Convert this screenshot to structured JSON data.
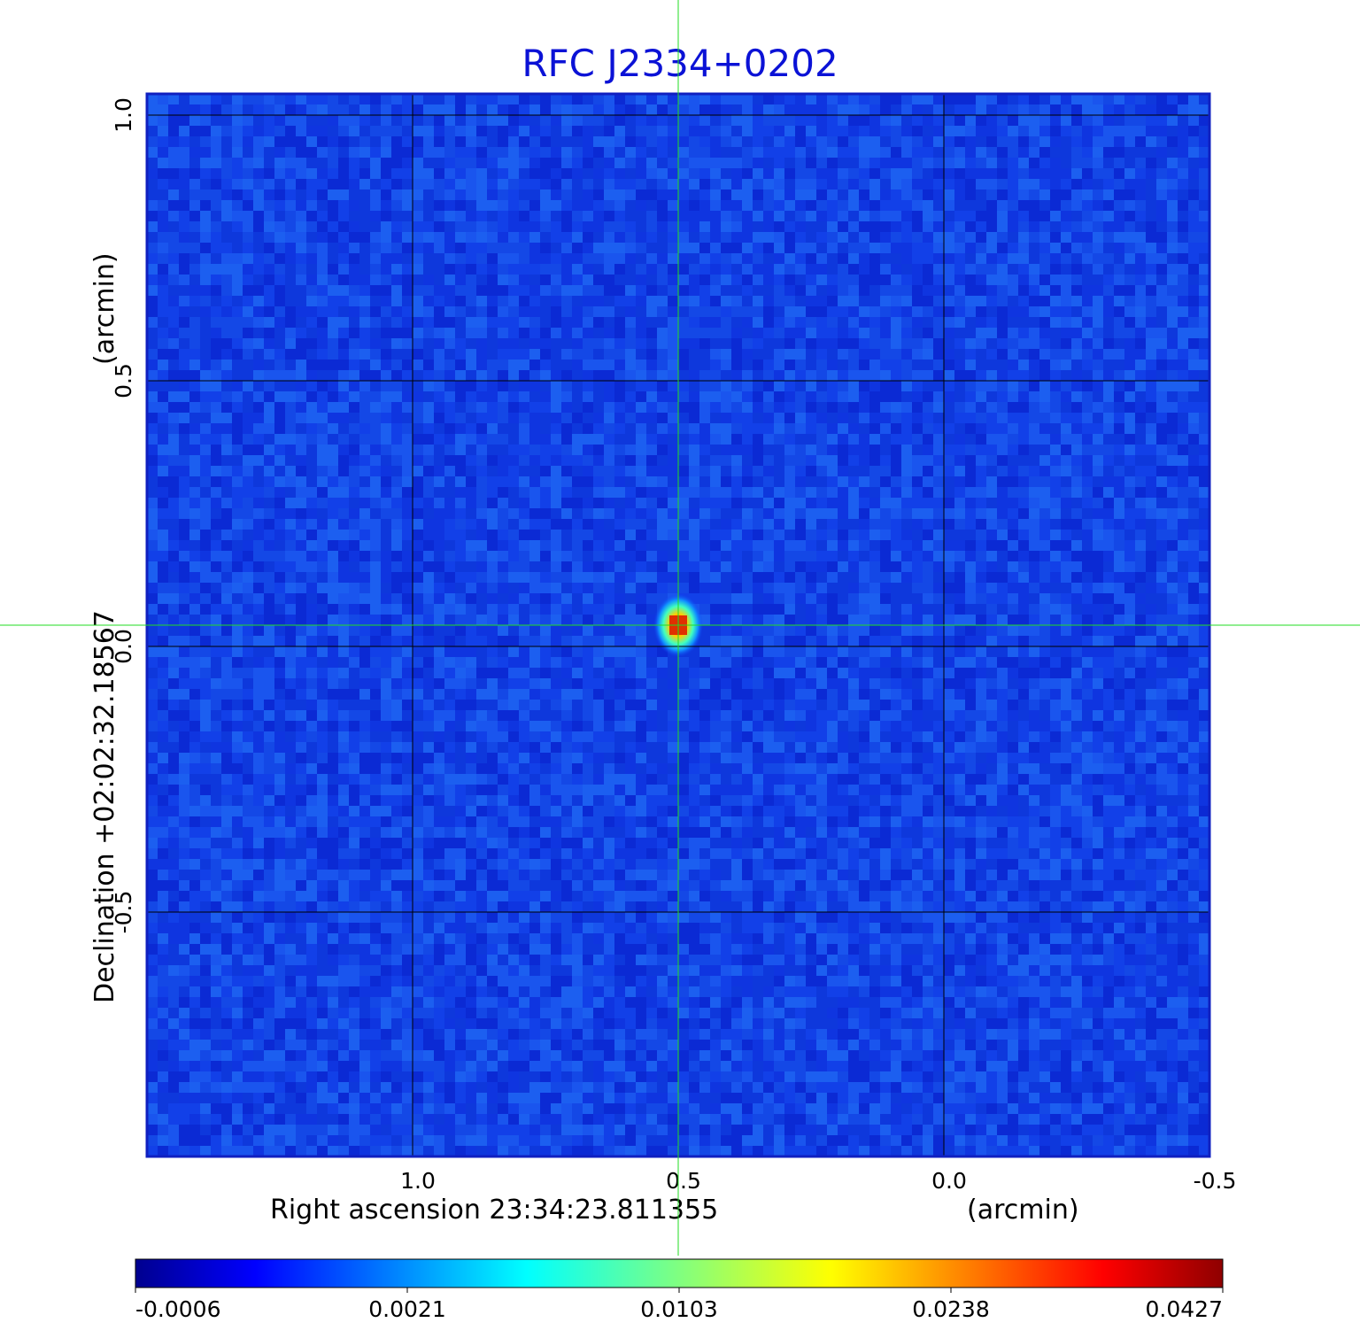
{
  "chart_data": {
    "type": "heatmap",
    "title": "RFC J2334+0202",
    "xlabel": "Right ascension  23:34:23.811355",
    "xunit": "(arcmin)",
    "ylabel": "Declination  +02:02:32.18567",
    "yunit": "(arcmin)",
    "x_ticks": [
      "1.0",
      "0.5",
      "0.0",
      "-0.5"
    ],
    "y_ticks": [
      "1.0",
      "0.5",
      "0.0",
      "-0.5"
    ],
    "xlim": [
      1.5,
      -0.5
    ],
    "ylim": [
      -0.96,
      1.04
    ],
    "grid": true,
    "crosshair": {
      "x": 0.5,
      "y": 0.04
    },
    "source_peak": {
      "x": 0.5,
      "y": 0.04,
      "value": 0.0427
    },
    "background_level": -0.0002,
    "colorbar": {
      "colormap": "jet",
      "tick_labels": [
        "-0.0006",
        "0.0021",
        "0.0103",
        "0.0238",
        "0.0427"
      ],
      "range": [
        -0.0006,
        0.0427
      ]
    },
    "colors": {
      "title": "#0b12d6",
      "crosshair": "#22dd22",
      "grid": "#000000",
      "frame": "#1020c0"
    }
  }
}
